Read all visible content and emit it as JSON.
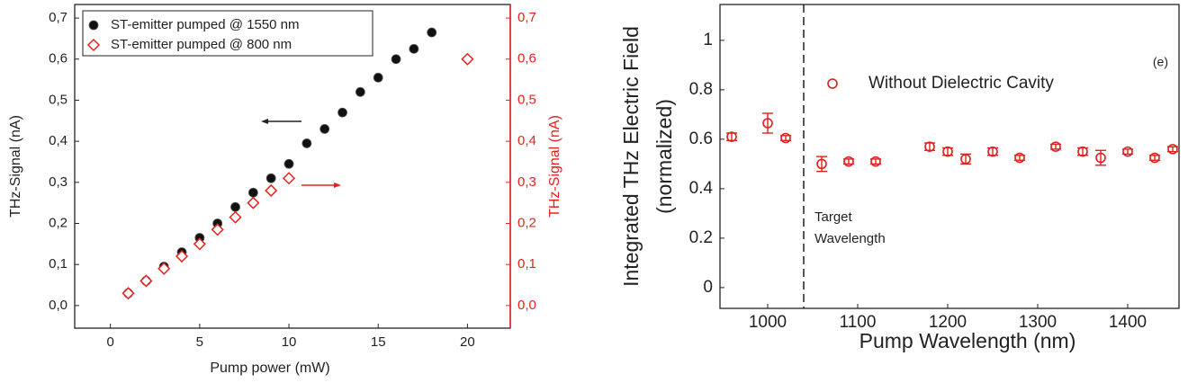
{
  "chart_data": [
    {
      "type": "scatter",
      "xlabel": "Pump power (mW)",
      "ylabel": "THz-Signal (nA)",
      "y2label": "THz-Signal (nA)",
      "xlim": [
        -2,
        22.4
      ],
      "ylim": [
        -0.055,
        0.733
      ],
      "y2lim": [
        -0.055,
        0.733
      ],
      "xticks": [
        0,
        5,
        10,
        15,
        20
      ],
      "yticks": [
        {
          "value": 0,
          "label": "0,0"
        },
        {
          "value": 0.1,
          "label": "0,1"
        },
        {
          "value": 0.2,
          "label": "0,2"
        },
        {
          "value": 0.3,
          "label": "0,3"
        },
        {
          "value": 0.4,
          "label": "0,4"
        },
        {
          "value": 0.5,
          "label": "0,5"
        },
        {
          "value": 0.6,
          "label": "0,6"
        },
        {
          "value": 0.7,
          "label": "0,7"
        }
      ],
      "y2ticks": [
        {
          "value": 0,
          "label": "0,0"
        },
        {
          "value": 0.1,
          "label": "0,1"
        },
        {
          "value": 0.2,
          "label": "0,2"
        },
        {
          "value": 0.3,
          "label": "0,3"
        },
        {
          "value": 0.4,
          "label": "0,4"
        },
        {
          "value": 0.5,
          "label": "0,5"
        },
        {
          "value": 0.6,
          "label": "0,6"
        },
        {
          "value": 0.7,
          "label": "0,7"
        }
      ],
      "y2color": "#e8211c",
      "legend": "upper left",
      "series": [
        {
          "name": "ST-emitter pumped @ 1550 nm",
          "color": "#111111",
          "marker": "circle",
          "x": [
            1,
            2,
            3,
            4,
            5,
            6,
            7,
            8,
            9,
            10,
            11,
            12,
            13,
            14,
            15,
            16,
            17,
            18
          ],
          "values": [
            0.03,
            0.06,
            0.095,
            0.13,
            0.165,
            0.2,
            0.24,
            0.275,
            0.31,
            0.345,
            0.395,
            0.43,
            0.47,
            0.52,
            0.555,
            0.6,
            0.625,
            0.665
          ]
        },
        {
          "name": "ST-emitter pumped @ 800 nm",
          "color": "#e8211c",
          "marker": "diamond",
          "axis": "y2",
          "x": [
            1,
            2,
            3,
            4,
            5,
            6,
            7,
            8,
            9,
            10,
            20
          ],
          "values": [
            0.03,
            0.06,
            0.09,
            0.12,
            0.15,
            0.185,
            0.215,
            0.25,
            0.28,
            0.31,
            0.6
          ]
        }
      ]
    },
    {
      "type": "scatter",
      "xlabel": "Pump Wavelength (nm)",
      "ylabel": [
        "Integrated THz Electric Field",
        "(normalized)"
      ],
      "xlim": [
        947,
        1457
      ],
      "ylim": [
        -0.084,
        1.145
      ],
      "xticks": [
        1000,
        1100,
        1200,
        1300,
        1400
      ],
      "yticks": [
        0,
        0.2,
        0.4,
        0.6,
        0.8,
        1
      ],
      "legend": "upper center",
      "panel_label": "(e)",
      "vline": {
        "x": 1040,
        "label": [
          "Target",
          "Wavelength"
        ]
      },
      "series": [
        {
          "name": "Without Dielectric Cavity",
          "color": "#e0201b",
          "marker": "open-circle",
          "x": [
            960,
            1000,
            1020,
            1060,
            1090,
            1120,
            1180,
            1200,
            1220,
            1250,
            1280,
            1320,
            1350,
            1370,
            1400,
            1430,
            1450
          ],
          "values": [
            0.61,
            0.665,
            0.605,
            0.5,
            0.51,
            0.51,
            0.57,
            0.55,
            0.52,
            0.55,
            0.525,
            0.57,
            0.55,
            0.525,
            0.55,
            0.525,
            0.56
          ],
          "errors": [
            0.015,
            0.04,
            0.01,
            0.03,
            0.01,
            0.01,
            0.015,
            0.015,
            0.02,
            0.015,
            0.01,
            0.01,
            0.015,
            0.03,
            0.01,
            0.01,
            0.01
          ]
        }
      ]
    }
  ]
}
